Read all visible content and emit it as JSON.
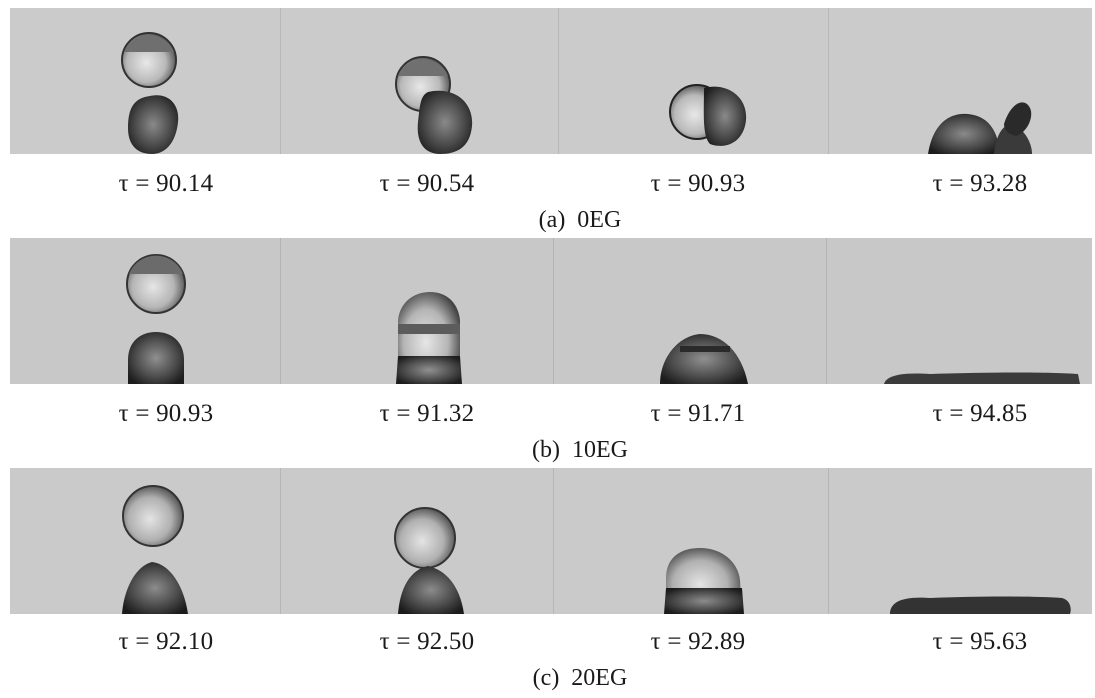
{
  "figure": {
    "panels": [
      {
        "caption": "(a)  0EG",
        "frames": [
          {
            "tau": "τ = 90.14"
          },
          {
            "tau": "τ = 90.54"
          },
          {
            "tau": "τ = 90.93"
          },
          {
            "tau": "τ = 93.28"
          }
        ]
      },
      {
        "caption": "(b)  10EG",
        "frames": [
          {
            "tau": "τ = 90.93"
          },
          {
            "tau": "τ = 91.32"
          },
          {
            "tau": "τ = 91.71"
          },
          {
            "tau": "τ = 94.85"
          }
        ]
      },
      {
        "caption": "(c)  20EG",
        "frames": [
          {
            "tau": "τ = 92.10"
          },
          {
            "tau": "τ = 92.50"
          },
          {
            "tau": "τ = 92.89"
          },
          {
            "tau": "τ = 95.63"
          }
        ]
      }
    ]
  }
}
